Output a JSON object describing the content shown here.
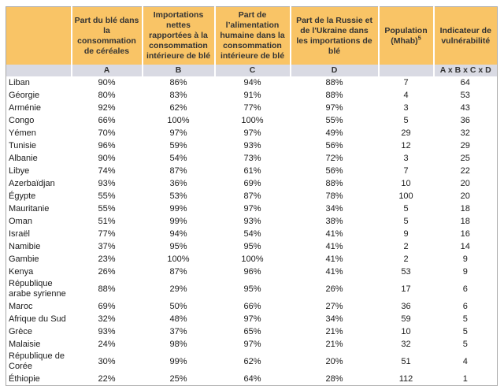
{
  "table": {
    "title_hidden": "",
    "columns": [
      {
        "header": "",
        "letter": ""
      },
      {
        "header": "Part du blé dans la consommation de céréales",
        "letter": "A"
      },
      {
        "header": "Importations nettes rapportées à la consommation intérieure de blé",
        "letter": "B"
      },
      {
        "header": "Part de l’alimentation humaine dans la consommation intérieure de blé",
        "letter": "C"
      },
      {
        "header": "Part de la Russie et de l'Ukraine dans les importations de blé",
        "letter": "D"
      },
      {
        "header": "Population (Mhab)",
        "header_sup": "5",
        "letter": ""
      },
      {
        "header": "Indicateur de vulnérabilité",
        "letter": "A x B x C x D"
      }
    ],
    "rows": [
      [
        "Liban",
        "90%",
        "86%",
        "94%",
        "88%",
        "7",
        "64"
      ],
      [
        "Géorgie",
        "80%",
        "83%",
        "91%",
        "88%",
        "4",
        "53"
      ],
      [
        "Arménie",
        "92%",
        "62%",
        "77%",
        "97%",
        "3",
        "43"
      ],
      [
        "Congo",
        "66%",
        "100%",
        "100%",
        "55%",
        "5",
        "36"
      ],
      [
        "Yémen",
        "70%",
        "97%",
        "97%",
        "49%",
        "29",
        "32"
      ],
      [
        "Tunisie",
        "96%",
        "59%",
        "93%",
        "56%",
        "12",
        "29"
      ],
      [
        "Albanie",
        "90%",
        "54%",
        "73%",
        "72%",
        "3",
        "25"
      ],
      [
        "Libye",
        "74%",
        "87%",
        "61%",
        "56%",
        "7",
        "22"
      ],
      [
        "Azerbaïdjan",
        "93%",
        "36%",
        "69%",
        "88%",
        "10",
        "20"
      ],
      [
        "Égypte",
        "55%",
        "53%",
        "87%",
        "78%",
        "100",
        "20"
      ],
      [
        "Mauritanie",
        "55%",
        "99%",
        "97%",
        "34%",
        "5",
        "18"
      ],
      [
        "Oman",
        "51%",
        "99%",
        "93%",
        "38%",
        "5",
        "18"
      ],
      [
        "Israël",
        "77%",
        "94%",
        "54%",
        "41%",
        "9",
        "16"
      ],
      [
        "Namibie",
        "37%",
        "95%",
        "95%",
        "41%",
        "2",
        "14"
      ],
      [
        "Gambie",
        "23%",
        "100%",
        "100%",
        "41%",
        "2",
        "9"
      ],
      [
        "Kenya",
        "26%",
        "87%",
        "96%",
        "41%",
        "53",
        "9"
      ],
      [
        "République arabe syrienne",
        "88%",
        "29%",
        "95%",
        "26%",
        "17",
        "6"
      ],
      [
        "Maroc",
        "69%",
        "50%",
        "66%",
        "27%",
        "36",
        "6"
      ],
      [
        "Afrique du Sud",
        "32%",
        "48%",
        "97%",
        "34%",
        "59",
        "5"
      ],
      [
        "Grèce",
        "93%",
        "37%",
        "65%",
        "21%",
        "10",
        "5"
      ],
      [
        "Malaisie",
        "24%",
        "98%",
        "97%",
        "21%",
        "32",
        "5"
      ],
      [
        "République de Corée",
        "30%",
        "99%",
        "62%",
        "20%",
        "51",
        "4"
      ],
      [
        "Éthiopie",
        "22%",
        "25%",
        "64%",
        "28%",
        "112",
        "1"
      ]
    ],
    "colors": {
      "header_bg": "#f9c466",
      "subheader_bg": "#d9dae3",
      "border": "#a9a9a9",
      "text": "#1a1a1a"
    }
  }
}
